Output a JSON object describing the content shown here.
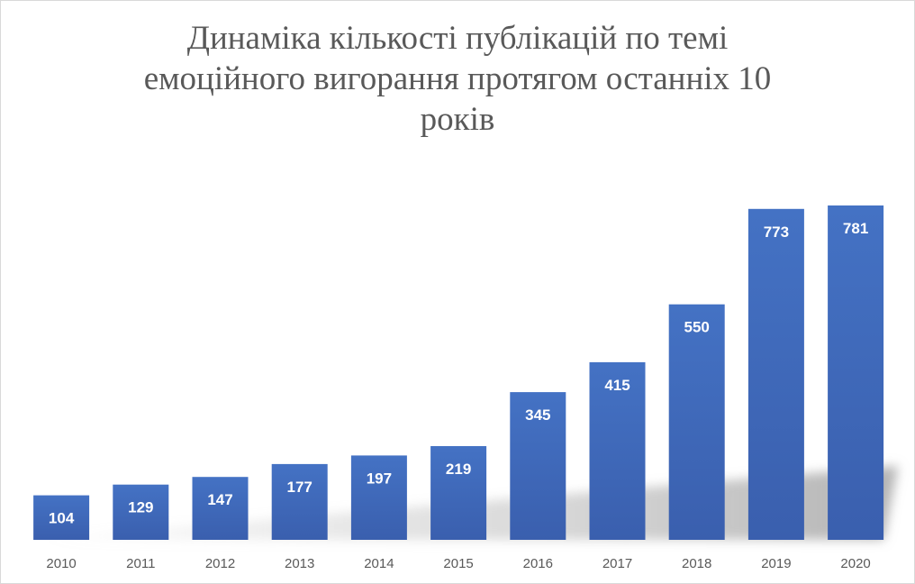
{
  "chart_data": {
    "type": "bar",
    "title_lines": [
      "Динаміка кількості публікацій по темі",
      "емоційного вигорання протягом останніх 10",
      "років"
    ],
    "categories": [
      "2010",
      "2011",
      "2012",
      "2013",
      "2014",
      "2015",
      "2016",
      "2017",
      "2018",
      "2019",
      "2020"
    ],
    "values": [
      104,
      129,
      147,
      177,
      197,
      219,
      345,
      415,
      550,
      773,
      781
    ],
    "xlabel": "",
    "ylabel": "",
    "ylim": [
      0,
      781
    ],
    "grid": false,
    "legend": "none",
    "data_labels": "inside-top",
    "bar_color": "#4472C4",
    "bar_color_dark": "#3A5FAE"
  }
}
